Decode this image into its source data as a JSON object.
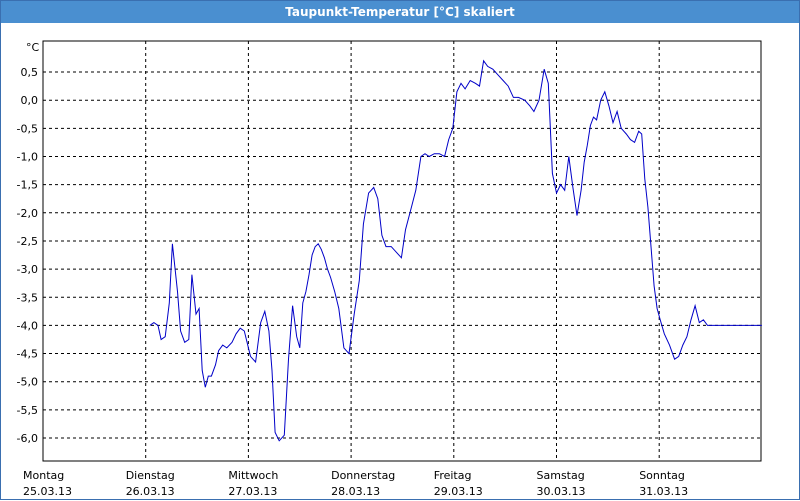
{
  "window": {
    "title": "Taupunkt-Temperatur [°C] skaliert"
  },
  "chart_data": {
    "type": "line",
    "title": "Taupunkt-Temperatur [°C] skaliert",
    "ylabel": "°C",
    "ylim": [
      -6.5,
      1.0
    ],
    "xlim": [
      0,
      7
    ],
    "grid": true,
    "y_ticks": [
      "0,5",
      "0,0",
      "-0,5",
      "-1,0",
      "-1,5",
      "-2,0",
      "-2,5",
      "-3,0",
      "-3,5",
      "-4,0",
      "-4,5",
      "-5,0",
      "-5,5",
      "-6,0"
    ],
    "y_tick_values": [
      0.5,
      0.0,
      -0.5,
      -1.0,
      -1.5,
      -2.0,
      -2.5,
      -3.0,
      -3.5,
      -4.0,
      -4.5,
      -5.0,
      -5.5,
      -6.0
    ],
    "x_ticks": [
      {
        "day": "Montag",
        "date": "25.03.13"
      },
      {
        "day": "Dienstag",
        "date": "26.03.13"
      },
      {
        "day": "Mittwoch",
        "date": "27.03.13"
      },
      {
        "day": "Donnerstag",
        "date": "28.03.13"
      },
      {
        "day": "Freitag",
        "date": "29.03.13"
      },
      {
        "day": "Samstag",
        "date": "30.03.13"
      },
      {
        "day": "Sonntag",
        "date": "31.03.13"
      }
    ],
    "series": [
      {
        "color": "#0000c8",
        "x": [
          1.04,
          1.08,
          1.12,
          1.15,
          1.19,
          1.23,
          1.26,
          1.31,
          1.34,
          1.38,
          1.42,
          1.45,
          1.49,
          1.52,
          1.55,
          1.58,
          1.61,
          1.64,
          1.68,
          1.71,
          1.75,
          1.79,
          1.84,
          1.88,
          1.92,
          1.96,
          2.02,
          2.07,
          2.12,
          2.16,
          2.2,
          2.23,
          2.26,
          2.3,
          2.35,
          2.39,
          2.43,
          2.47,
          2.5,
          2.53,
          2.56,
          2.59,
          2.62,
          2.65,
          2.68,
          2.71,
          2.74,
          2.77,
          2.8,
          2.84,
          2.88,
          2.93,
          2.98,
          3.03,
          3.08,
          3.12,
          3.17,
          3.22,
          3.26,
          3.3,
          3.34,
          3.39,
          3.44,
          3.49,
          3.53,
          3.58,
          3.63,
          3.68,
          3.72,
          3.76,
          3.81,
          3.86,
          3.91,
          3.95,
          3.99,
          4.03,
          4.07,
          4.11,
          4.16,
          4.21,
          4.25,
          4.29,
          4.33,
          4.38,
          4.43,
          4.48,
          4.53,
          4.58,
          4.63,
          4.69,
          4.74,
          4.78,
          4.83,
          4.88,
          4.92,
          4.96,
          5.0,
          5.04,
          5.08,
          5.12,
          5.16,
          5.2,
          5.24,
          5.27,
          5.3,
          5.33,
          5.36,
          5.39,
          5.43,
          5.47,
          5.51,
          5.55,
          5.59,
          5.63,
          5.68,
          5.72,
          5.76,
          5.8,
          5.83,
          5.86,
          5.89,
          5.92,
          5.95,
          5.98,
          6.01,
          6.05,
          6.1,
          6.15,
          6.19,
          6.23,
          6.27,
          6.31,
          6.35,
          6.39,
          6.43,
          6.47,
          6.51,
          6.55,
          6.59,
          6.63,
          6.67,
          6.71,
          6.75,
          6.8,
          6.85,
          6.9,
          6.95,
          7.0,
          7.03,
          7.07,
          7.12,
          7.17,
          7.21,
          7.25
        ],
        "y": [
          -4.0,
          -3.95,
          -4.0,
          -4.25,
          -4.2,
          -3.6,
          -2.55,
          -3.4,
          -4.1,
          -4.3,
          -4.25,
          -3.1,
          -3.8,
          -3.7,
          -4.8,
          -5.1,
          -4.9,
          -4.9,
          -4.7,
          -4.45,
          -4.35,
          -4.4,
          -4.3,
          -4.15,
          -4.05,
          -4.1,
          -4.55,
          -4.65,
          -3.95,
          -3.75,
          -4.1,
          -4.8,
          -5.9,
          -6.05,
          -5.95,
          -4.6,
          -3.65,
          -4.2,
          -4.4,
          -3.6,
          -3.4,
          -3.1,
          -2.75,
          -2.6,
          -2.55,
          -2.65,
          -2.8,
          -3.0,
          -3.15,
          -3.4,
          -3.7,
          -4.4,
          -4.5,
          -3.8,
          -3.2,
          -2.2,
          -1.65,
          -1.55,
          -1.75,
          -2.4,
          -2.6,
          -2.6,
          -2.7,
          -2.8,
          -2.3,
          -1.95,
          -1.6,
          -1.0,
          -0.95,
          -1.0,
          -0.95,
          -0.95,
          -1.0,
          -0.7,
          -0.5,
          0.15,
          0.3,
          0.2,
          0.35,
          0.3,
          0.25,
          0.7,
          0.6,
          0.55,
          0.45,
          0.35,
          0.25,
          0.05,
          0.05,
          0.0,
          -0.1,
          -0.2,
          0.0,
          0.55,
          0.3,
          -1.3,
          -1.65,
          -1.5,
          -1.6,
          -1.0,
          -1.55,
          -2.05,
          -1.6,
          -1.1,
          -0.8,
          -0.45,
          -0.3,
          -0.35,
          0.0,
          0.15,
          -0.1,
          -0.4,
          -0.2,
          -0.5,
          -0.6,
          -0.7,
          -0.75,
          -0.55,
          -0.6,
          -1.4,
          -1.9,
          -2.6,
          -3.3,
          -3.7,
          -3.9,
          -4.15,
          -4.35,
          -4.6,
          -4.55,
          -4.35,
          -4.2,
          -3.9,
          -3.65,
          -3.95,
          -3.9,
          -4.0,
          -4.0,
          -4.0,
          -4.0,
          -4.0,
          -4.0,
          -4.0,
          -4.0,
          -4.0,
          -4.0,
          -4.0,
          -4.0,
          -4.0,
          -4.0,
          -4.0,
          -4.0,
          -4.0,
          -4.0,
          -4.0
        ]
      }
    ]
  }
}
